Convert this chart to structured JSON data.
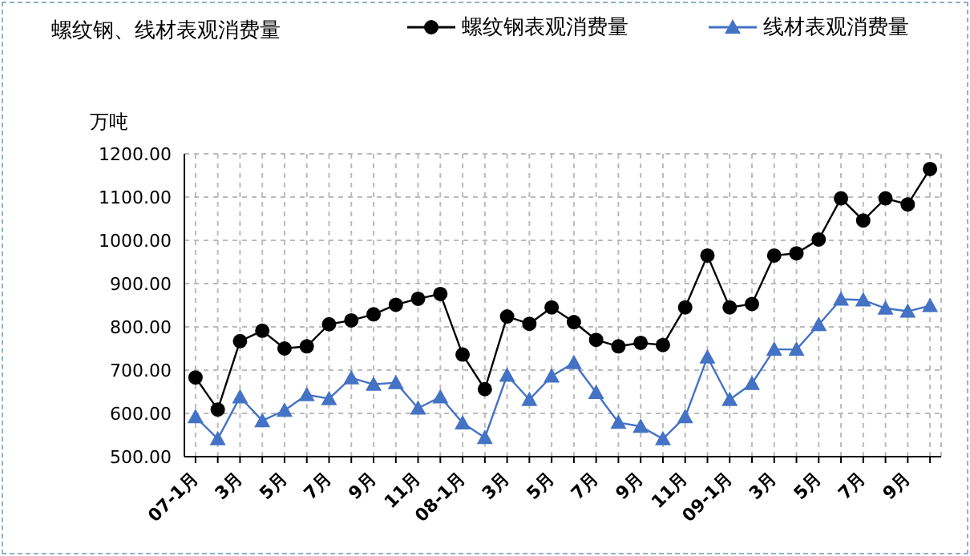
{
  "chart_data": {
    "type": "line",
    "title": "螺纹钢、线材表观消费量",
    "ylabel": "万吨",
    "categories": [
      "07-1月",
      null,
      "3月",
      null,
      "5月",
      null,
      "7月",
      null,
      "9月",
      null,
      "11月",
      null,
      "08-1月",
      null,
      "3月",
      null,
      "5月",
      null,
      "7月",
      null,
      "9月",
      null,
      "11月",
      null,
      "09-1月",
      null,
      "3月",
      null,
      "5月",
      null,
      "7月",
      null,
      "9月",
      null
    ],
    "series": [
      {
        "name": "螺纹钢表观消费量",
        "color": "#000000",
        "marker": "circle",
        "values": [
          683,
          609,
          767,
          791,
          750,
          755,
          806,
          815,
          829,
          851,
          865,
          876,
          736,
          656,
          824,
          807,
          845,
          811,
          770,
          755,
          763,
          758,
          845,
          965,
          845,
          853,
          965,
          970,
          1002,
          1097,
          1046,
          1097,
          1083,
          1165
        ]
      },
      {
        "name": "线材表观消费量",
        "color": "#4472c4",
        "marker": "triangle",
        "values": [
          592,
          541,
          638,
          583,
          607,
          643,
          634,
          682,
          667,
          671,
          612,
          638,
          578,
          544,
          688,
          632,
          686,
          717,
          648,
          579,
          570,
          541,
          592,
          730,
          632,
          669,
          748,
          748,
          805,
          864,
          862,
          843,
          836,
          849
        ]
      }
    ],
    "ylim": [
      500,
      1200
    ],
    "yticks": [
      {
        "value": 500,
        "label": "500.00"
      },
      {
        "value": 600,
        "label": "600.00"
      },
      {
        "value": 700,
        "label": "700.00"
      },
      {
        "value": 800,
        "label": "800.00"
      },
      {
        "value": 900,
        "label": "900.00"
      },
      {
        "value": 1000,
        "label": "1000.00"
      },
      {
        "value": 1100,
        "label": "1100.00"
      },
      {
        "value": 1200,
        "label": "1200.00"
      }
    ],
    "grid": true,
    "legend": "top right",
    "line_style": "solid"
  }
}
